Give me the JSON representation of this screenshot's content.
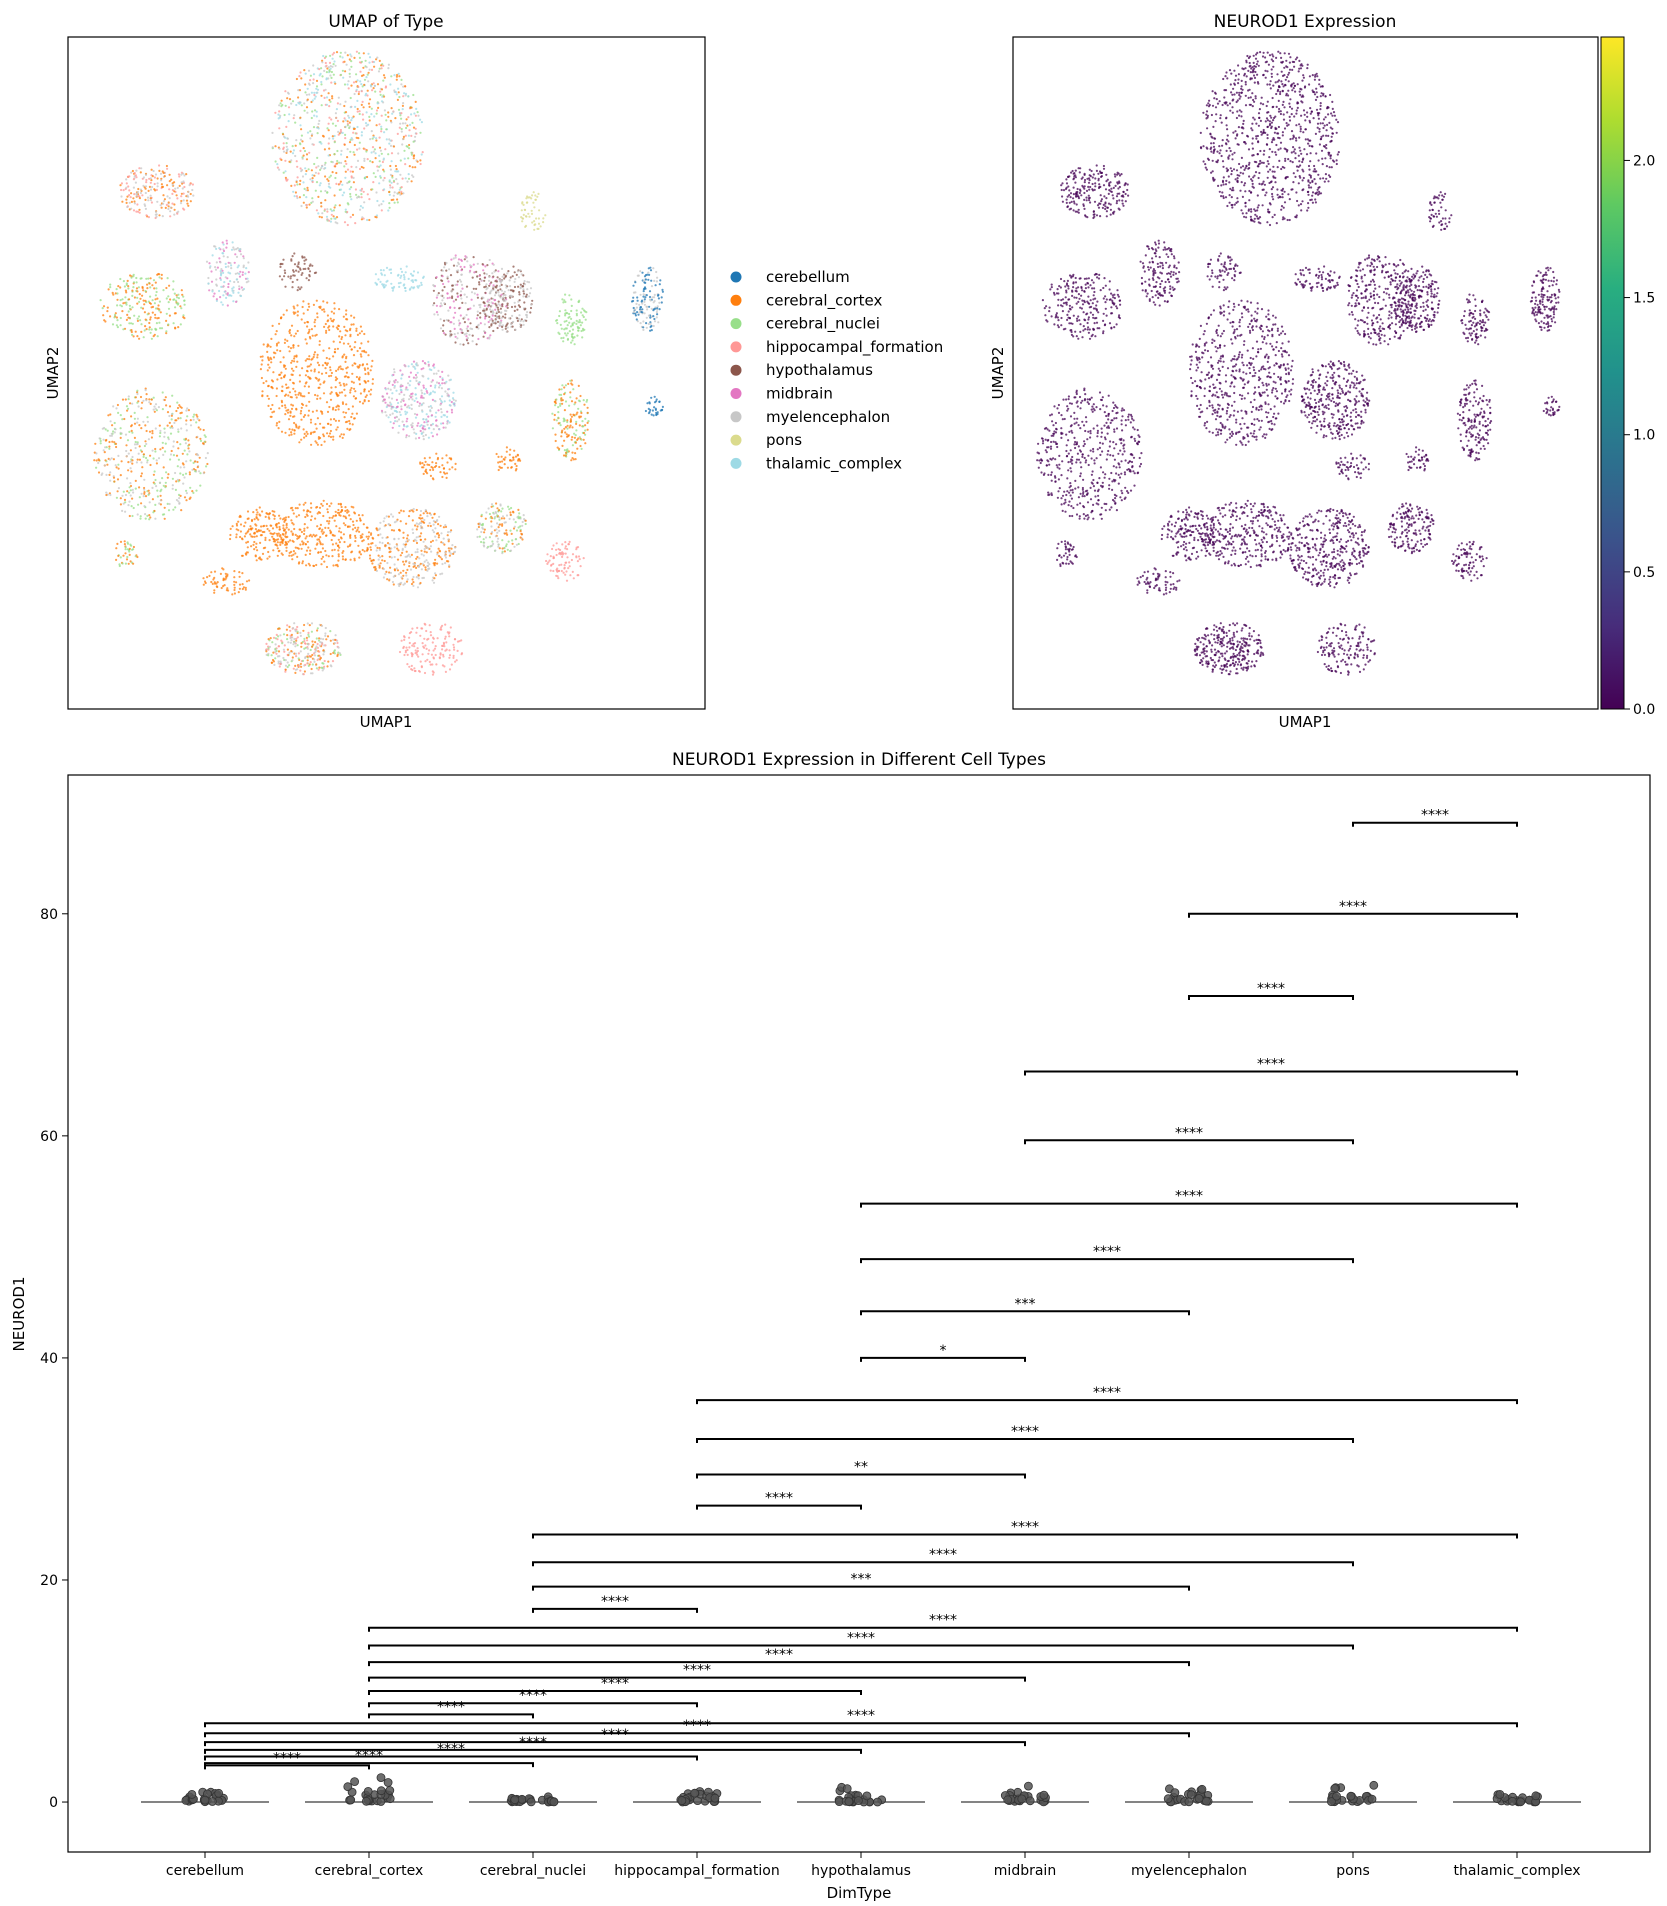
{
  "chart_data": [
    {
      "type": "scatter",
      "title": "UMAP of Type",
      "xlabel": "UMAP1",
      "ylabel": "UMAP2",
      "grid": false,
      "legend_placement": "right-outside",
      "legend": [
        {
          "name": "cerebellum",
          "color": "#1f77b4"
        },
        {
          "name": "cerebral_cortex",
          "color": "#ff7f0e"
        },
        {
          "name": "cerebral_nuclei",
          "color": "#98df8a"
        },
        {
          "name": "hippocampal_formation",
          "color": "#ff9896"
        },
        {
          "name": "hypothalamus",
          "color": "#8c564b"
        },
        {
          "name": "midbrain",
          "color": "#e377c2"
        },
        {
          "name": "myelencephalon",
          "color": "#c7c7c7"
        },
        {
          "name": "pons",
          "color": "#dbdb8d"
        },
        {
          "name": "thalamic_complex",
          "color": "#9edae5"
        }
      ]
    },
    {
      "type": "scatter",
      "title": "NEUROD1 Expression",
      "xlabel": "UMAP1",
      "ylabel": "UMAP2",
      "grid": false,
      "point_color": "#440154",
      "colorbar": {
        "colormap": "viridis",
        "range": [
          0,
          2.45
        ],
        "ticks": [
          0.0,
          0.5,
          1.0,
          1.5,
          2.0
        ],
        "tick_labels": [
          "0.0",
          "0.5",
          "1.0",
          "1.5",
          "2.0"
        ]
      }
    },
    {
      "type": "violin",
      "title": "NEUROD1 Expression in Different Cell Types",
      "xlabel": "DimType",
      "ylabel": "NEUROD1",
      "grid": false,
      "categories": [
        "cerebellum",
        "cerebral_cortex",
        "cerebral_nuclei",
        "hippocampal_formation",
        "hypothalamus",
        "midbrain",
        "myelencephalon",
        "pons",
        "thalamic_complex"
      ],
      "max_values": [
        1.8,
        2.6,
        0.6,
        1.4,
        1.7,
        1.8,
        2.2,
        2.0,
        0.8
      ],
      "ylim": [
        -4.5,
        92.5
      ],
      "yticks": [
        0,
        20,
        40,
        60,
        80
      ],
      "ytick_labels": [
        "0",
        "20",
        "40",
        "60",
        "80"
      ],
      "comparisons": [
        {
          "a": 0,
          "b": 1,
          "y": 3.3,
          "label": "****"
        },
        {
          "a": 0,
          "b": 2,
          "y": 3.5,
          "label": "****"
        },
        {
          "a": 0,
          "b": 3,
          "y": 4.1,
          "label": "****"
        },
        {
          "a": 0,
          "b": 4,
          "y": 4.7,
          "label": "****"
        },
        {
          "a": 0,
          "b": 5,
          "y": 5.4,
          "label": "****"
        },
        {
          "a": 0,
          "b": 6,
          "y": 6.2,
          "label": "****"
        },
        {
          "a": 0,
          "b": 8,
          "y": 7.1,
          "label": "****"
        },
        {
          "a": 1,
          "b": 2,
          "y": 7.9,
          "label": "****"
        },
        {
          "a": 1,
          "b": 3,
          "y": 8.9,
          "label": "****"
        },
        {
          "a": 1,
          "b": 4,
          "y": 10.0,
          "label": "****"
        },
        {
          "a": 1,
          "b": 5,
          "y": 11.2,
          "label": "****"
        },
        {
          "a": 1,
          "b": 6,
          "y": 12.6,
          "label": "****"
        },
        {
          "a": 1,
          "b": 7,
          "y": 14.1,
          "label": "****"
        },
        {
          "a": 1,
          "b": 8,
          "y": 15.7,
          "label": "****"
        },
        {
          "a": 2,
          "b": 3,
          "y": 17.4,
          "label": "****"
        },
        {
          "a": 2,
          "b": 6,
          "y": 19.4,
          "label": "***"
        },
        {
          "a": 2,
          "b": 7,
          "y": 21.6,
          "label": "****"
        },
        {
          "a": 2,
          "b": 8,
          "y": 24.1,
          "label": "****"
        },
        {
          "a": 3,
          "b": 4,
          "y": 26.7,
          "label": "****"
        },
        {
          "a": 3,
          "b": 5,
          "y": 29.5,
          "label": "**"
        },
        {
          "a": 3,
          "b": 7,
          "y": 32.7,
          "label": "****"
        },
        {
          "a": 3,
          "b": 8,
          "y": 36.2,
          "label": "****"
        },
        {
          "a": 4,
          "b": 5,
          "y": 40.0,
          "label": "*"
        },
        {
          "a": 4,
          "b": 6,
          "y": 44.2,
          "label": "***"
        },
        {
          "a": 4,
          "b": 7,
          "y": 48.9,
          "label": "****"
        },
        {
          "a": 4,
          "b": 8,
          "y": 53.9,
          "label": "****"
        },
        {
          "a": 5,
          "b": 7,
          "y": 59.6,
          "label": "****"
        },
        {
          "a": 5,
          "b": 8,
          "y": 65.8,
          "label": "****"
        },
        {
          "a": 6,
          "b": 7,
          "y": 72.6,
          "label": "****"
        },
        {
          "a": 6,
          "b": 8,
          "y": 80.0,
          "label": "****"
        },
        {
          "a": 7,
          "b": 8,
          "y": 88.2,
          "label": "****"
        }
      ]
    }
  ]
}
